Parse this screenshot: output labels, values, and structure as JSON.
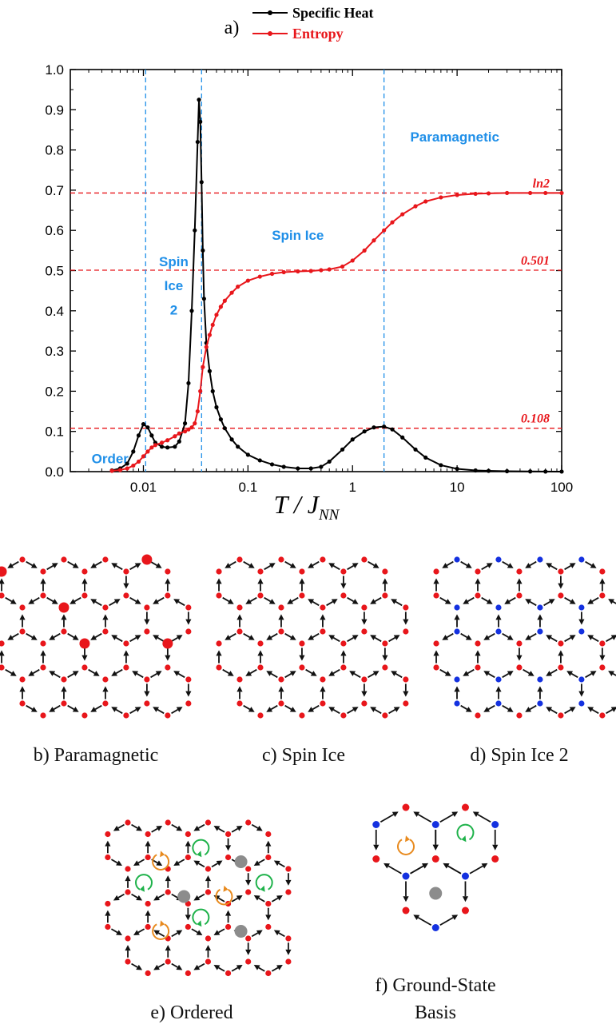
{
  "colors": {
    "specific_heat": "#000000",
    "entropy": "#e8161b",
    "phase_boundary": "#1f8fe8",
    "reference_line": "#e8161b",
    "phase_label": "#1f8fe8",
    "site_red": "#e8161b",
    "site_blue": "#1431e0",
    "vortex_orange": "#e88a1e",
    "vortex_green": "#1eb24a",
    "vortex_gray": "#8c8c8c"
  },
  "panel_label": "a)",
  "chart_data": {
    "type": "line",
    "title": "",
    "xlabel": "T / J",
    "xlabel_subscript": "NN",
    "ylabel": "",
    "xscale": "log",
    "xlim": [
      0.002,
      100
    ],
    "ylim": [
      0,
      1.0
    ],
    "x_ticks": [
      0.01,
      0.1,
      1,
      10,
      100
    ],
    "x_tick_labels": [
      "0.01",
      "0.1",
      "1",
      "10",
      "100"
    ],
    "y_ticks": [
      0,
      0.1,
      0.2,
      0.3,
      0.4,
      0.5,
      0.6,
      0.7,
      0.8,
      0.9,
      1.0
    ],
    "y_tick_labels": [
      "0.0",
      "0.1",
      "0.2",
      "0.3",
      "0.4",
      "0.5",
      "0.6",
      "0.7",
      "0.8",
      "0.9",
      "1.0"
    ],
    "grid": false,
    "legend_position": "top-center",
    "series": [
      {
        "name": "Specific Heat",
        "x": [
          0.005,
          0.006,
          0.007,
          0.008,
          0.009,
          0.01,
          0.011,
          0.012,
          0.013,
          0.015,
          0.017,
          0.02,
          0.022,
          0.025,
          0.027,
          0.029,
          0.031,
          0.033,
          0.034,
          0.035,
          0.036,
          0.037,
          0.038,
          0.04,
          0.043,
          0.046,
          0.05,
          0.055,
          0.06,
          0.07,
          0.08,
          0.1,
          0.13,
          0.17,
          0.22,
          0.3,
          0.4,
          0.5,
          0.6,
          0.8,
          1.0,
          1.3,
          1.6,
          2.0,
          2.4,
          3.0,
          4.0,
          5.0,
          7.0,
          10,
          15,
          20,
          30,
          50,
          70,
          100
        ],
        "y": [
          0.003,
          0.008,
          0.02,
          0.05,
          0.09,
          0.118,
          0.11,
          0.09,
          0.072,
          0.062,
          0.06,
          0.062,
          0.075,
          0.12,
          0.22,
          0.4,
          0.6,
          0.82,
          0.925,
          0.87,
          0.72,
          0.55,
          0.43,
          0.32,
          0.25,
          0.2,
          0.16,
          0.13,
          0.108,
          0.08,
          0.062,
          0.042,
          0.028,
          0.018,
          0.012,
          0.008,
          0.008,
          0.012,
          0.025,
          0.055,
          0.08,
          0.1,
          0.11,
          0.112,
          0.105,
          0.085,
          0.055,
          0.035,
          0.016,
          0.007,
          0.003,
          0.002,
          0.001,
          0.0005,
          0.0002,
          0.0001
        ]
      },
      {
        "name": "Entropy",
        "x": [
          0.005,
          0.006,
          0.007,
          0.008,
          0.009,
          0.01,
          0.011,
          0.012,
          0.013,
          0.015,
          0.017,
          0.02,
          0.022,
          0.025,
          0.027,
          0.029,
          0.031,
          0.033,
          0.035,
          0.037,
          0.04,
          0.043,
          0.046,
          0.05,
          0.055,
          0.06,
          0.07,
          0.08,
          0.1,
          0.13,
          0.17,
          0.22,
          0.3,
          0.4,
          0.5,
          0.6,
          0.8,
          1.0,
          1.3,
          1.6,
          2.0,
          2.4,
          3.0,
          4.0,
          5.0,
          7.0,
          10,
          15,
          20,
          30,
          50,
          70,
          100
        ],
        "y": [
          0.002,
          0.004,
          0.008,
          0.015,
          0.025,
          0.038,
          0.05,
          0.06,
          0.066,
          0.072,
          0.078,
          0.088,
          0.095,
          0.1,
          0.105,
          0.11,
          0.12,
          0.15,
          0.2,
          0.26,
          0.31,
          0.34,
          0.365,
          0.39,
          0.41,
          0.425,
          0.445,
          0.46,
          0.475,
          0.485,
          0.492,
          0.496,
          0.498,
          0.499,
          0.501,
          0.503,
          0.51,
          0.525,
          0.55,
          0.575,
          0.6,
          0.62,
          0.64,
          0.66,
          0.672,
          0.682,
          0.688,
          0.691,
          0.692,
          0.693,
          0.693,
          0.693,
          0.693
        ]
      }
    ],
    "reference_lines": [
      {
        "y": 0.693,
        "label": "ln2"
      },
      {
        "y": 0.501,
        "label": "0.501"
      },
      {
        "y": 0.108,
        "label": "0.108"
      }
    ],
    "phase_boundaries_x": [
      0.0105,
      0.036,
      2.0
    ],
    "phase_labels": [
      {
        "text": "Order",
        "x": 0.0048,
        "y": 0.035
      },
      {
        "text": "Spin",
        "x": 0.0195,
        "y": 0.525
      },
      {
        "text": "Ice",
        "x": 0.0195,
        "y": 0.465
      },
      {
        "text": "2",
        "x": 0.0195,
        "y": 0.405
      },
      {
        "text": "Spin Ice",
        "x": 0.3,
        "y": 0.59
      },
      {
        "text": "Paramagnetic",
        "x": 9.5,
        "y": 0.835
      }
    ]
  },
  "captions": {
    "b": "b) Paramagnetic",
    "c": "c) Spin Ice",
    "d": "d) Spin Ice 2",
    "e": "e) Ordered",
    "f_line1": "f) Ground-State",
    "f_line2": "Basis"
  }
}
